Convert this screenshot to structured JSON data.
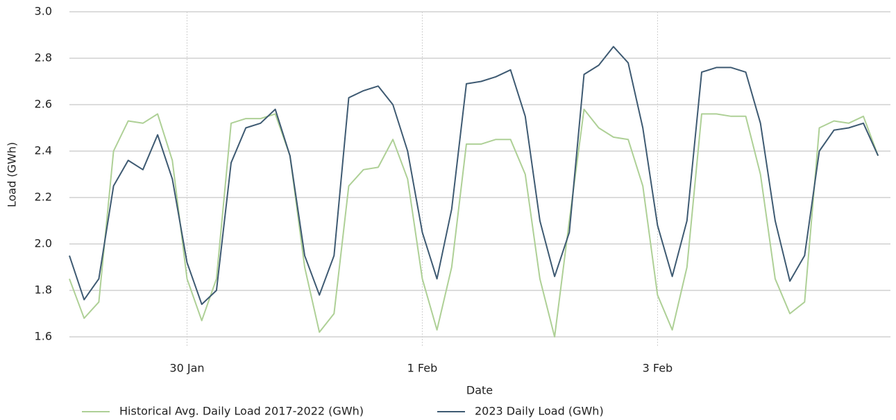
{
  "chart_data": {
    "type": "line",
    "x_label": "Date",
    "y_label": "Load (GWh)",
    "x": [
      0,
      0.125,
      0.25,
      0.375,
      0.5,
      0.625,
      0.75,
      0.875,
      1,
      1.125,
      1.25,
      1.375,
      1.5,
      1.625,
      1.75,
      1.875,
      2,
      2.125,
      2.25,
      2.375,
      2.5,
      2.625,
      2.75,
      2.875,
      3,
      3.125,
      3.25,
      3.375,
      3.5,
      3.625,
      3.75,
      3.875,
      4,
      4.125,
      4.25,
      4.375,
      4.5,
      4.625,
      4.75,
      4.875,
      5,
      5.125,
      5.25,
      5.375,
      5.5,
      5.625,
      5.75,
      5.875,
      6,
      6.125,
      6.25,
      6.375,
      6.5,
      6.625,
      6.75,
      6.875
    ],
    "series": [
      {
        "name": "Historical Avg. Daily Load 2017-2022 (GWh)",
        "color": "#aed096",
        "values": [
          1.85,
          1.68,
          1.75,
          2.4,
          2.53,
          2.52,
          2.56,
          2.36,
          1.85,
          1.67,
          1.85,
          2.52,
          2.54,
          2.54,
          2.56,
          2.38,
          1.9,
          1.62,
          1.7,
          2.25,
          2.32,
          2.33,
          2.45,
          2.28,
          1.85,
          1.63,
          1.9,
          2.43,
          2.43,
          2.45,
          2.45,
          2.3,
          1.85,
          1.6,
          2.1,
          2.58,
          2.5,
          2.46,
          2.45,
          2.25,
          1.78,
          1.63,
          1.9,
          2.56,
          2.56,
          2.55,
          2.55,
          2.3,
          1.85,
          1.7,
          1.75,
          2.5,
          2.53,
          2.52,
          2.55,
          2.38
        ]
      },
      {
        "name": "2023 Daily Load (GWh)",
        "color": "#3e5a72",
        "values": [
          1.95,
          1.76,
          1.85,
          2.25,
          2.36,
          2.32,
          2.47,
          2.28,
          1.92,
          1.74,
          1.8,
          2.35,
          2.5,
          2.52,
          2.58,
          2.38,
          1.95,
          1.78,
          1.95,
          2.63,
          2.66,
          2.68,
          2.6,
          2.4,
          2.05,
          1.85,
          2.15,
          2.69,
          2.7,
          2.72,
          2.75,
          2.55,
          2.1,
          1.86,
          2.05,
          2.73,
          2.77,
          2.85,
          2.78,
          2.5,
          2.08,
          1.86,
          2.1,
          2.74,
          2.76,
          2.76,
          2.74,
          2.52,
          2.1,
          1.84,
          1.95,
          2.4,
          2.49,
          2.5,
          2.52,
          2.38
        ]
      }
    ],
    "xlim": [
      0,
      6.98
    ],
    "xticks": [
      {
        "value": 1,
        "label": "30 Jan"
      },
      {
        "value": 3,
        "label": "1 Feb"
      },
      {
        "value": 5,
        "label": "3 Feb"
      }
    ],
    "ylim": [
      1.6,
      3.0
    ],
    "yticks": [
      {
        "value": 1.6,
        "label": "1.6"
      },
      {
        "value": 1.8,
        "label": "1.8"
      },
      {
        "value": 2.0,
        "label": "2.0"
      },
      {
        "value": 2.2,
        "label": "2.2"
      },
      {
        "value": 2.4,
        "label": "2.4"
      },
      {
        "value": 2.6,
        "label": "2.6"
      },
      {
        "value": 2.8,
        "label": "2.8"
      },
      {
        "value": 3.0,
        "label": "3.0"
      }
    ],
    "grid": true,
    "legend": "bottom"
  }
}
